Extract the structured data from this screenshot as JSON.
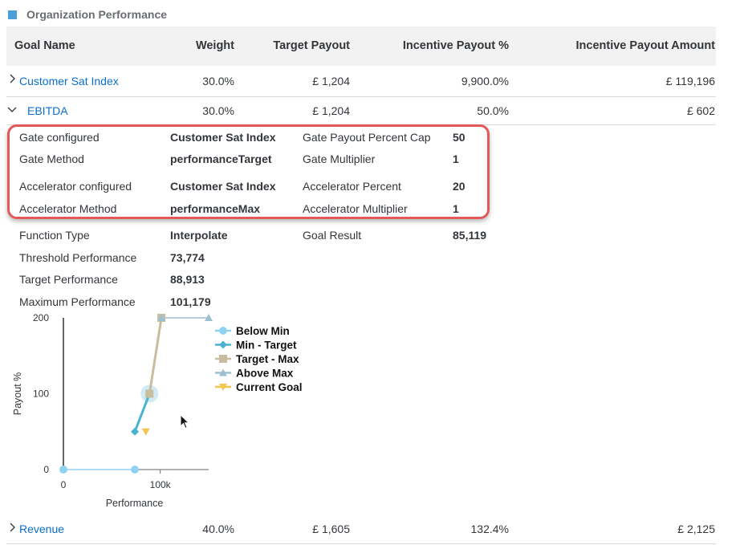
{
  "section": {
    "title": "Organization Performance",
    "icon": "square-icon"
  },
  "table": {
    "headers": [
      "Goal Name",
      "Weight",
      "Target Payout",
      "Incentive Payout %",
      "Incentive Payout Amount"
    ],
    "rows": [
      {
        "name": "Customer Sat Index",
        "weight": "30.0%",
        "target_payout": "£ 1,204",
        "payout_pct": "9,900.0%",
        "payout_amount": "£ 119,196",
        "expanded": false
      },
      {
        "name": "EBITDA",
        "weight": "30.0%",
        "target_payout": "£ 1,204",
        "payout_pct": "50.0%",
        "payout_amount": "£ 602",
        "expanded": true
      },
      {
        "name": "Revenue",
        "weight": "40.0%",
        "target_payout": "£ 1,605",
        "payout_pct": "132.4%",
        "payout_amount": "£ 2,125",
        "expanded": false
      }
    ]
  },
  "details": {
    "gate_configured": {
      "label": "Gate configured",
      "value": "Customer Sat Index"
    },
    "gate_method": {
      "label": "Gate Method",
      "value": "performanceTarget"
    },
    "accelerator_configured": {
      "label": "Accelerator configured",
      "value": "Customer Sat Index"
    },
    "accelerator_method": {
      "label": "Accelerator Method",
      "value": "performanceMax"
    },
    "gate_payout_cap": {
      "label": "Gate Payout Percent Cap",
      "value": "50"
    },
    "gate_multiplier": {
      "label": "Gate Multiplier",
      "value": "1"
    },
    "accelerator_percent": {
      "label": "Accelerator Percent",
      "value": "20"
    },
    "accelerator_multiplier": {
      "label": "Accelerator Multiplier",
      "value": "1"
    },
    "function_type": {
      "label": "Function Type",
      "value": "Interpolate"
    },
    "goal_result": {
      "label": "Goal Result",
      "value": "85,119"
    },
    "threshold_performance": {
      "label": "Threshold Performance",
      "value": "73,774"
    },
    "target_performance": {
      "label": "Target Performance",
      "value": "88,913"
    },
    "maximum_performance": {
      "label": "Maximum Performance",
      "value": "101,179"
    }
  },
  "chart_data": {
    "type": "line",
    "xlabel": "Performance",
    "ylabel": "Payout %",
    "xlim": [
      0,
      150000
    ],
    "ylim": [
      0,
      200
    ],
    "x_ticks": [
      {
        "value": 0,
        "label": "0"
      },
      {
        "value": 100000,
        "label": "100k"
      }
    ],
    "y_ticks": [
      {
        "value": 0,
        "label": "0"
      },
      {
        "value": 100,
        "label": "100"
      },
      {
        "value": 200,
        "label": "200"
      }
    ],
    "legend_position": "top-right",
    "series": [
      {
        "name": "Below Min",
        "color": "#8fd3f0",
        "marker": "circle",
        "points": [
          [
            0,
            0
          ],
          [
            73774,
            0
          ]
        ]
      },
      {
        "name": "Min - Target",
        "color": "#4bb3d1",
        "marker": "diamond",
        "points": [
          [
            73774,
            50
          ],
          [
            88913,
            100
          ]
        ]
      },
      {
        "name": "Target - Max",
        "color": "#c9bda0",
        "marker": "square",
        "points": [
          [
            88913,
            100
          ],
          [
            101179,
            200
          ]
        ]
      },
      {
        "name": "Above Max",
        "color": "#9cbfd2",
        "marker": "triangle",
        "points": [
          [
            101179,
            200
          ],
          [
            150000,
            200
          ]
        ]
      },
      {
        "name": "Current Goal",
        "color": "#f4c553",
        "marker": "triangle-down",
        "points": [
          [
            85119,
            50
          ]
        ]
      }
    ]
  }
}
